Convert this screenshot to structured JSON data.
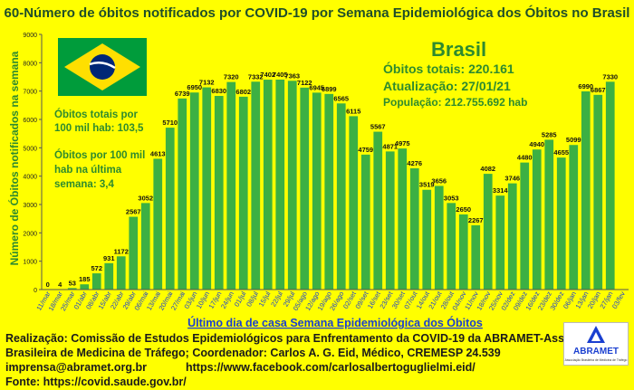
{
  "title": "60-Número de óbitos notificados por COVID-19 por Semana Epidemiológica dos Óbitos  no Brasil",
  "panel": {
    "country": "Brasil",
    "total_deaths": "Óbitos totais: 220.161",
    "updated": "Atualização: 27/01/21",
    "population": "População: 212.755.692 hab"
  },
  "left_notes": {
    "per100k_l1": "Óbitos totais por",
    "per100k_l2": "100 mil hab: 103,5",
    "lastweek_l1": "Óbitos por 100 mil",
    "lastweek_l2": "hab na última",
    "lastweek_l3": "semana: 3,4"
  },
  "footer": {
    "line1": "Realização: Comissão de Estudos Epidemiológicos para Enfrentamento da COVID-19 da ABRAMET-Associação",
    "line2": "Brasileira de Medicina de Tráfego; Coordenador: Carlos A. G. Eid, Médico, CREMESP 24.539",
    "email": "imprensa@abramet.org.br",
    "facebook": "https://www.facebook.com/carlosalbertoguglielmi.eid/",
    "source": "Fonte: https://covid.saude.gov.br/"
  },
  "logo": {
    "name": "ABRAMET",
    "tagline": "Associação Brasileira de Medicina de Tráfego"
  },
  "colors": {
    "background": "#ffff00",
    "bar": "#3cb043",
    "title": "#1f4e29",
    "accent_text": "#2e8b2e",
    "axis_label": "#2e8b2e"
  },
  "chart_data": {
    "type": "bar",
    "title": "60-Número de óbitos notificados por COVID-19 por Semana Epidemiológica dos Óbitos  no Brasil",
    "xlabel": "Último dia de casa Semana Epidemiológica dos Óbitos",
    "ylabel": "Número de Óbitos notificados na semana",
    "ylim": [
      0,
      9000
    ],
    "yticks": [
      0,
      1000,
      2000,
      3000,
      4000,
      5000,
      6000,
      7000,
      8000,
      9000
    ],
    "grid": false,
    "categories": [
      "11/mar",
      "18/mar",
      "25/mar",
      "01/abr",
      "08/abr",
      "15/abr",
      "22/abr",
      "29/abr",
      "06/mai",
      "13/mai",
      "20/mai",
      "27/mai",
      "03/jun",
      "10/jun",
      "17/jun",
      "24/jun",
      "01/jul",
      "08/jul",
      "15/jul",
      "22/jul",
      "29/jul",
      "05/ago",
      "12/ago",
      "19/ago",
      "26/ago",
      "02/set",
      "09/set",
      "16/set",
      "23/set",
      "30/set",
      "07/out",
      "14/out",
      "21/out",
      "28/out",
      "04/nov",
      "11/nov",
      "18/nov",
      "25/nov",
      "02/dez",
      "09/dez",
      "16/dez",
      "23/dez",
      "30/dez",
      "06/jan",
      "13/jan",
      "20/jan",
      "27/jan",
      "03/fev"
    ],
    "values": [
      0,
      4,
      53,
      185,
      572,
      931,
      1172,
      2567,
      3052,
      4613,
      5710,
      6739,
      6950,
      7132,
      6830,
      7320,
      6802,
      7332,
      7402,
      7405,
      7363,
      7122,
      6945,
      6899,
      6565,
      6115,
      4759,
      5567,
      4871,
      4975,
      4276,
      3519,
      3656,
      3053,
      2650,
      2267,
      4082,
      3314,
      3746,
      4480,
      4940,
      5285,
      4655,
      5099,
      6990,
      6867,
      7330,
      null
    ]
  }
}
